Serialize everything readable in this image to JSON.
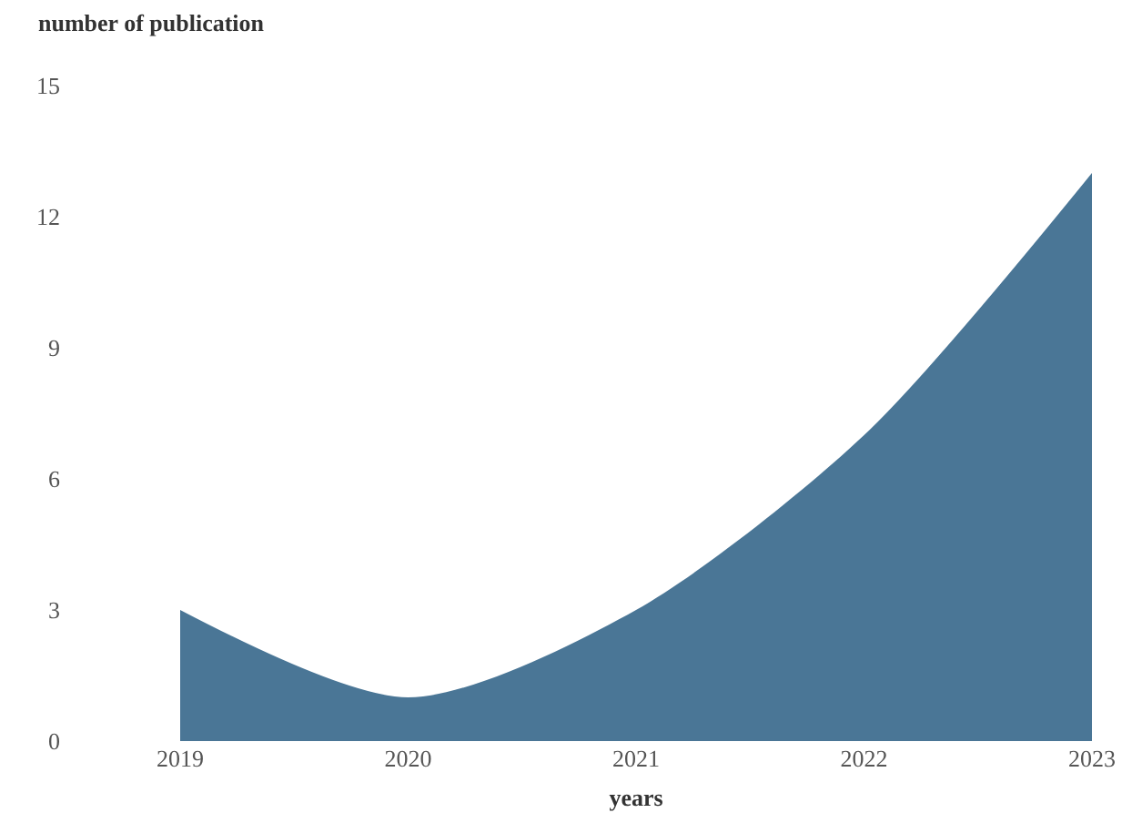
{
  "chart_data": {
    "type": "area",
    "xlabel": "years",
    "ylabel": "number of publication",
    "x": [
      2019,
      2020,
      2021,
      2022,
      2023
    ],
    "series": [
      {
        "color": "#4a7696",
        "values": [
          3,
          1,
          3,
          7,
          13
        ]
      }
    ],
    "xlim": [
      2019,
      2023
    ],
    "xticks": [
      2019,
      2020,
      2021,
      2022,
      2023
    ],
    "ylim": [
      0,
      15
    ],
    "yticks": [
      0,
      3,
      6,
      9,
      12,
      15
    ],
    "grid": false,
    "legend": false,
    "marker": "none"
  }
}
